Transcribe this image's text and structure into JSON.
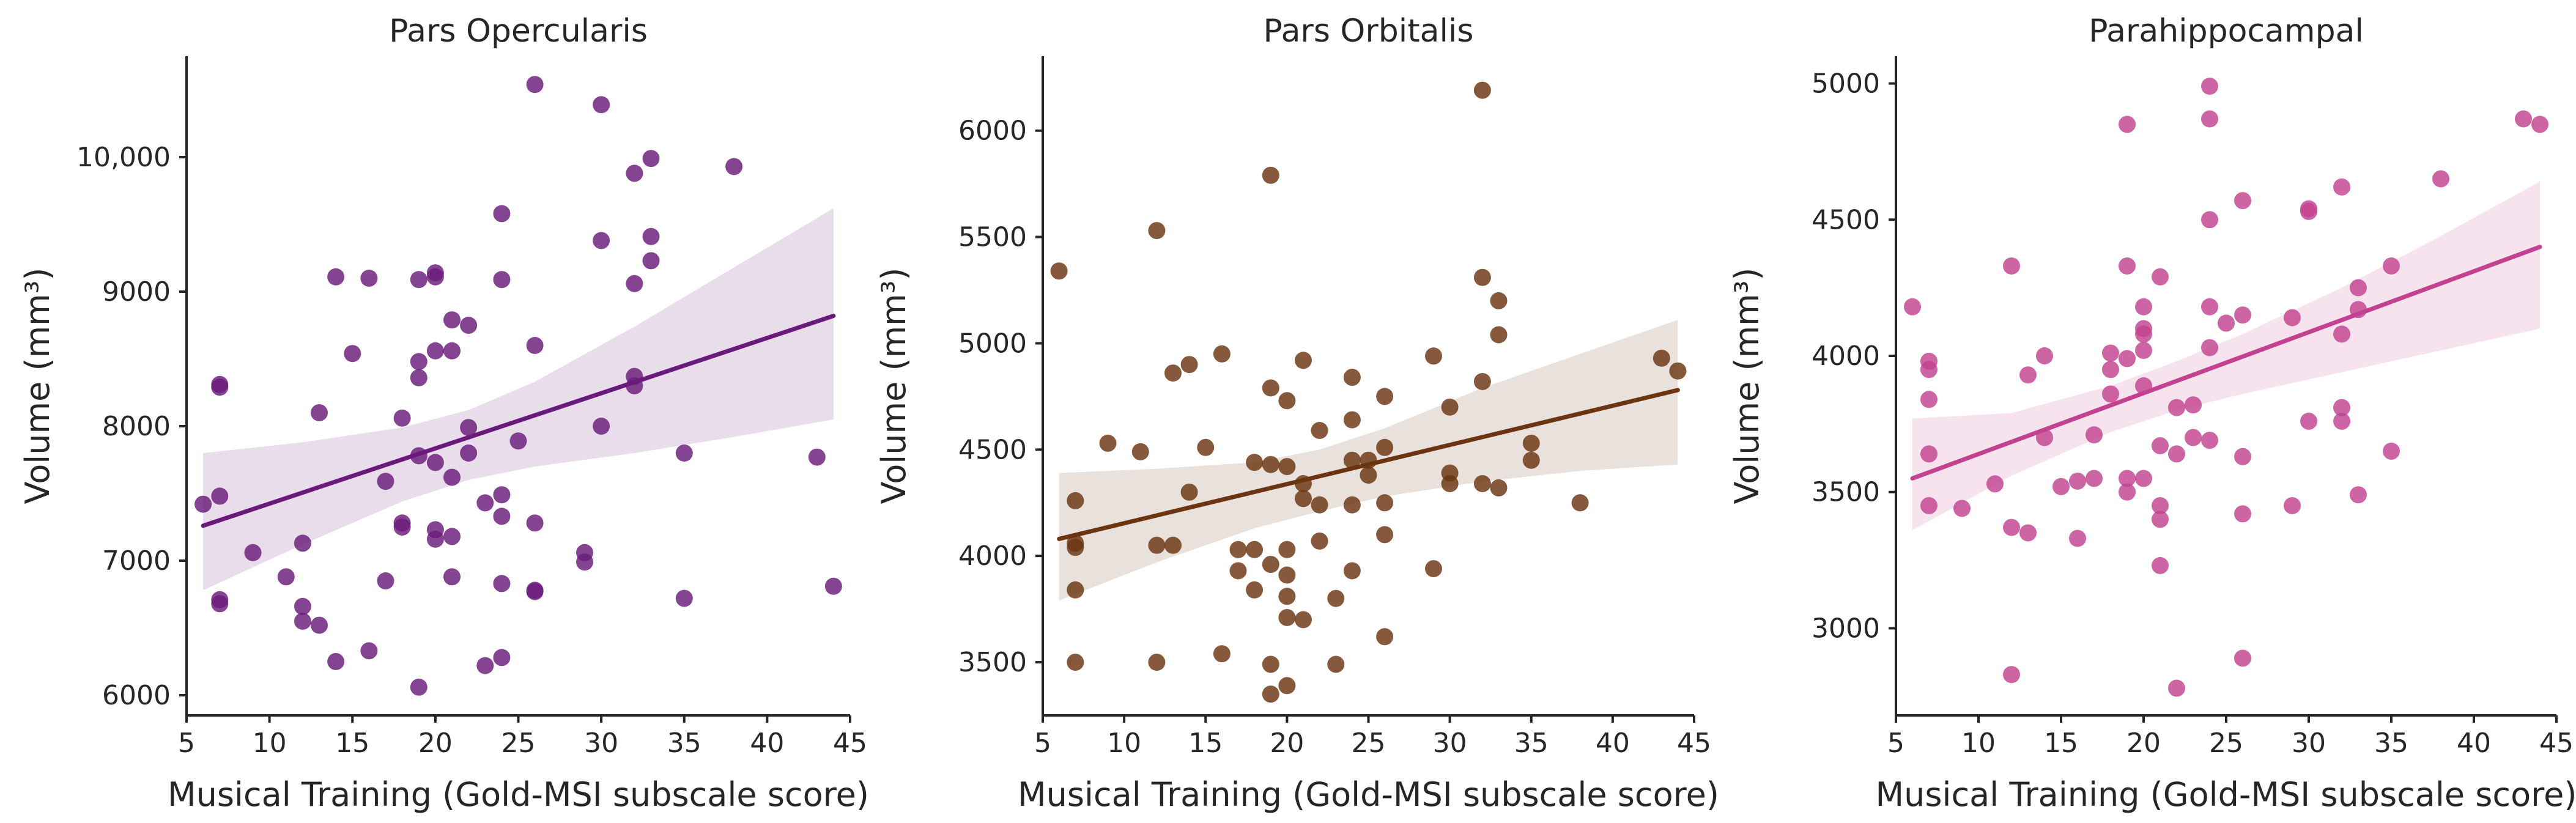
{
  "chart_data": [
    {
      "type": "scatter",
      "title": "Pars Opercularis",
      "xlabel": "Musical Training (Gold-MSI subscale score)",
      "ylabel": "Volume (mm³)",
      "color": "#6a1b7a",
      "xlim": [
        5,
        45
      ],
      "ylim": [
        5850,
        10750
      ],
      "xticks": [
        "5",
        "10",
        "15",
        "20",
        "25",
        "30",
        "35",
        "40",
        "45"
      ],
      "yticks": [
        "6000",
        "7000",
        "8000",
        "9000",
        "10,000"
      ],
      "ytick_values": [
        6000,
        7000,
        8000,
        9000,
        10000
      ],
      "regression": {
        "x": [
          6,
          44
        ],
        "y": [
          7260,
          8820
        ]
      },
      "ci_band": {
        "x": [
          6,
          12,
          18,
          22,
          26,
          32,
          38,
          44
        ],
        "upper": [
          7800,
          7880,
          7990,
          8120,
          8330,
          8740,
          9180,
          9620
        ],
        "lower": [
          6780,
          7120,
          7440,
          7600,
          7700,
          7800,
          7920,
          8050
        ]
      },
      "points": [
        [
          6,
          7420
        ],
        [
          7,
          8310
        ],
        [
          7,
          8290
        ],
        [
          7,
          6710
        ],
        [
          7,
          6680
        ],
        [
          7,
          7480
        ],
        [
          9,
          7060
        ],
        [
          11,
          6880
        ],
        [
          12,
          6550
        ],
        [
          12,
          6660
        ],
        [
          12,
          7130
        ],
        [
          13,
          8100
        ],
        [
          13,
          6520
        ],
        [
          14,
          9110
        ],
        [
          14,
          6250
        ],
        [
          15,
          8540
        ],
        [
          16,
          9100
        ],
        [
          16,
          6330
        ],
        [
          17,
          7590
        ],
        [
          17,
          6850
        ],
        [
          18,
          8060
        ],
        [
          18,
          7280
        ],
        [
          18,
          7250
        ],
        [
          19,
          9090
        ],
        [
          19,
          8480
        ],
        [
          19,
          8360
        ],
        [
          19,
          7780
        ],
        [
          19,
          6060
        ],
        [
          20,
          9140
        ],
        [
          20,
          9110
        ],
        [
          20,
          8560
        ],
        [
          20,
          7730
        ],
        [
          20,
          7230
        ],
        [
          20,
          7160
        ],
        [
          21,
          8790
        ],
        [
          21,
          8560
        ],
        [
          21,
          7620
        ],
        [
          21,
          7180
        ],
        [
          21,
          6880
        ],
        [
          22,
          8750
        ],
        [
          22,
          7990
        ],
        [
          22,
          7800
        ],
        [
          23,
          7430
        ],
        [
          23,
          6220
        ],
        [
          24,
          9580
        ],
        [
          24,
          9090
        ],
        [
          24,
          7490
        ],
        [
          24,
          7330
        ],
        [
          24,
          6830
        ],
        [
          24,
          6280
        ],
        [
          25,
          7890
        ],
        [
          26,
          10540
        ],
        [
          26,
          8600
        ],
        [
          26,
          7280
        ],
        [
          26,
          6770
        ],
        [
          26,
          6780
        ],
        [
          29,
          7060
        ],
        [
          29,
          6990
        ],
        [
          30,
          10390
        ],
        [
          30,
          9380
        ],
        [
          30,
          8000
        ],
        [
          32,
          9880
        ],
        [
          32,
          9060
        ],
        [
          32,
          8370
        ],
        [
          32,
          8300
        ],
        [
          33,
          9990
        ],
        [
          33,
          9410
        ],
        [
          33,
          9230
        ],
        [
          35,
          7800
        ],
        [
          35,
          6720
        ],
        [
          38,
          9930
        ],
        [
          43,
          7770
        ],
        [
          44,
          6810
        ]
      ]
    },
    {
      "type": "scatter",
      "title": "Pars Orbitalis",
      "xlabel": "Musical Training (Gold-MSI subscale score)",
      "ylabel": "Volume (mm³)",
      "color": "#6b3511",
      "xlim": [
        5,
        45
      ],
      "ylim": [
        3250,
        6350
      ],
      "xticks": [
        "5",
        "10",
        "15",
        "20",
        "25",
        "30",
        "35",
        "40",
        "45"
      ],
      "yticks": [
        "3500",
        "4000",
        "4500",
        "5000",
        "5500",
        "6000"
      ],
      "ytick_values": [
        3500,
        4000,
        4500,
        5000,
        5500,
        6000
      ],
      "regression": {
        "x": [
          6,
          44
        ],
        "y": [
          4080,
          4780
        ]
      },
      "ci_band": {
        "x": [
          6,
          12,
          18,
          22,
          26,
          32,
          38,
          44
        ],
        "upper": [
          4390,
          4410,
          4440,
          4500,
          4600,
          4790,
          4950,
          5110
        ],
        "lower": [
          3790,
          3970,
          4130,
          4210,
          4280,
          4350,
          4400,
          4430
        ]
      },
      "points": [
        [
          6,
          5340
        ],
        [
          7,
          4260
        ],
        [
          7,
          4060
        ],
        [
          7,
          4040
        ],
        [
          7,
          3840
        ],
        [
          7,
          3500
        ],
        [
          9,
          4530
        ],
        [
          11,
          4490
        ],
        [
          12,
          5530
        ],
        [
          12,
          4050
        ],
        [
          12,
          3500
        ],
        [
          13,
          4860
        ],
        [
          13,
          4050
        ],
        [
          14,
          4900
        ],
        [
          14,
          4300
        ],
        [
          15,
          4510
        ],
        [
          16,
          4950
        ],
        [
          16,
          3540
        ],
        [
          17,
          4030
        ],
        [
          17,
          3930
        ],
        [
          18,
          4030
        ],
        [
          18,
          4440
        ],
        [
          18,
          3840
        ],
        [
          19,
          5790
        ],
        [
          19,
          4790
        ],
        [
          19,
          4430
        ],
        [
          19,
          3960
        ],
        [
          19,
          3490
        ],
        [
          19,
          3350
        ],
        [
          20,
          4730
        ],
        [
          20,
          4420
        ],
        [
          20,
          4030
        ],
        [
          20,
          3910
        ],
        [
          20,
          3810
        ],
        [
          20,
          3710
        ],
        [
          20,
          3390
        ],
        [
          21,
          4920
        ],
        [
          21,
          4340
        ],
        [
          21,
          4270
        ],
        [
          21,
          3700
        ],
        [
          22,
          4590
        ],
        [
          22,
          4240
        ],
        [
          22,
          4070
        ],
        [
          23,
          3800
        ],
        [
          23,
          3490
        ],
        [
          24,
          4840
        ],
        [
          24,
          4640
        ],
        [
          24,
          4450
        ],
        [
          24,
          4240
        ],
        [
          24,
          3930
        ],
        [
          25,
          4450
        ],
        [
          25,
          4380
        ],
        [
          26,
          4750
        ],
        [
          26,
          4510
        ],
        [
          26,
          4250
        ],
        [
          26,
          4100
        ],
        [
          26,
          3620
        ],
        [
          29,
          4940
        ],
        [
          29,
          3940
        ],
        [
          30,
          4700
        ],
        [
          30,
          4390
        ],
        [
          30,
          4340
        ],
        [
          32,
          6190
        ],
        [
          32,
          5310
        ],
        [
          32,
          4820
        ],
        [
          32,
          4340
        ],
        [
          33,
          5200
        ],
        [
          33,
          5040
        ],
        [
          33,
          4320
        ],
        [
          35,
          4530
        ],
        [
          35,
          4450
        ],
        [
          38,
          4250
        ],
        [
          43,
          4930
        ],
        [
          44,
          4870
        ]
      ]
    },
    {
      "type": "scatter",
      "title": "Parahippocampal",
      "xlabel": "Musical Training (Gold-MSI subscale score)",
      "ylabel": "Volume (mm³)",
      "color": "#c2428f",
      "xlim": [
        5,
        45
      ],
      "ylim": [
        2680,
        5100
      ],
      "xticks": [
        "5",
        "10",
        "15",
        "20",
        "25",
        "30",
        "35",
        "40",
        "45"
      ],
      "yticks": [
        "3000",
        "3500",
        "4000",
        "4500",
        "5000"
      ],
      "ytick_values": [
        3000,
        3500,
        4000,
        4500,
        5000
      ],
      "regression": {
        "x": [
          6,
          44
        ],
        "y": [
          3550,
          4400
        ]
      },
      "ci_band": {
        "x": [
          6,
          12,
          18,
          22,
          26,
          32,
          38,
          44
        ],
        "upper": [
          3770,
          3790,
          3890,
          3980,
          4080,
          4250,
          4440,
          4640
        ],
        "lower": [
          3360,
          3560,
          3720,
          3800,
          3860,
          3940,
          4020,
          4100
        ]
      },
      "points": [
        [
          6,
          4180
        ],
        [
          7,
          3980
        ],
        [
          7,
          3950
        ],
        [
          7,
          3840
        ],
        [
          7,
          3640
        ],
        [
          7,
          3450
        ],
        [
          9,
          3440
        ],
        [
          11,
          3530
        ],
        [
          12,
          4330
        ],
        [
          12,
          3370
        ],
        [
          12,
          2830
        ],
        [
          13,
          3930
        ],
        [
          13,
          3350
        ],
        [
          14,
          4000
        ],
        [
          14,
          3700
        ],
        [
          15,
          3520
        ],
        [
          16,
          3540
        ],
        [
          16,
          3330
        ],
        [
          17,
          3710
        ],
        [
          17,
          3550
        ],
        [
          18,
          4010
        ],
        [
          18,
          3950
        ],
        [
          18,
          3860
        ],
        [
          19,
          4850
        ],
        [
          19,
          4330
        ],
        [
          19,
          3990
        ],
        [
          19,
          3550
        ],
        [
          19,
          3500
        ],
        [
          20,
          4180
        ],
        [
          20,
          4100
        ],
        [
          20,
          4080
        ],
        [
          20,
          4020
        ],
        [
          20,
          3890
        ],
        [
          20,
          3550
        ],
        [
          21,
          4290
        ],
        [
          21,
          3670
        ],
        [
          21,
          3450
        ],
        [
          21,
          3400
        ],
        [
          21,
          3230
        ],
        [
          22,
          3810
        ],
        [
          22,
          3640
        ],
        [
          22,
          2780
        ],
        [
          23,
          3820
        ],
        [
          23,
          3700
        ],
        [
          24,
          4990
        ],
        [
          24,
          4870
        ],
        [
          24,
          4500
        ],
        [
          24,
          4180
        ],
        [
          24,
          4030
        ],
        [
          24,
          3690
        ],
        [
          25,
          4120
        ],
        [
          26,
          4570
        ],
        [
          26,
          4150
        ],
        [
          26,
          3630
        ],
        [
          26,
          3420
        ],
        [
          26,
          2890
        ],
        [
          29,
          4140
        ],
        [
          29,
          3450
        ],
        [
          30,
          4540
        ],
        [
          30,
          4530
        ],
        [
          30,
          3760
        ],
        [
          32,
          4620
        ],
        [
          32,
          4080
        ],
        [
          32,
          3810
        ],
        [
          32,
          3760
        ],
        [
          33,
          4250
        ],
        [
          33,
          4170
        ],
        [
          33,
          3490
        ],
        [
          35,
          4330
        ],
        [
          35,
          3650
        ],
        [
          38,
          4650
        ],
        [
          43,
          4870
        ],
        [
          44,
          4850
        ]
      ]
    }
  ]
}
